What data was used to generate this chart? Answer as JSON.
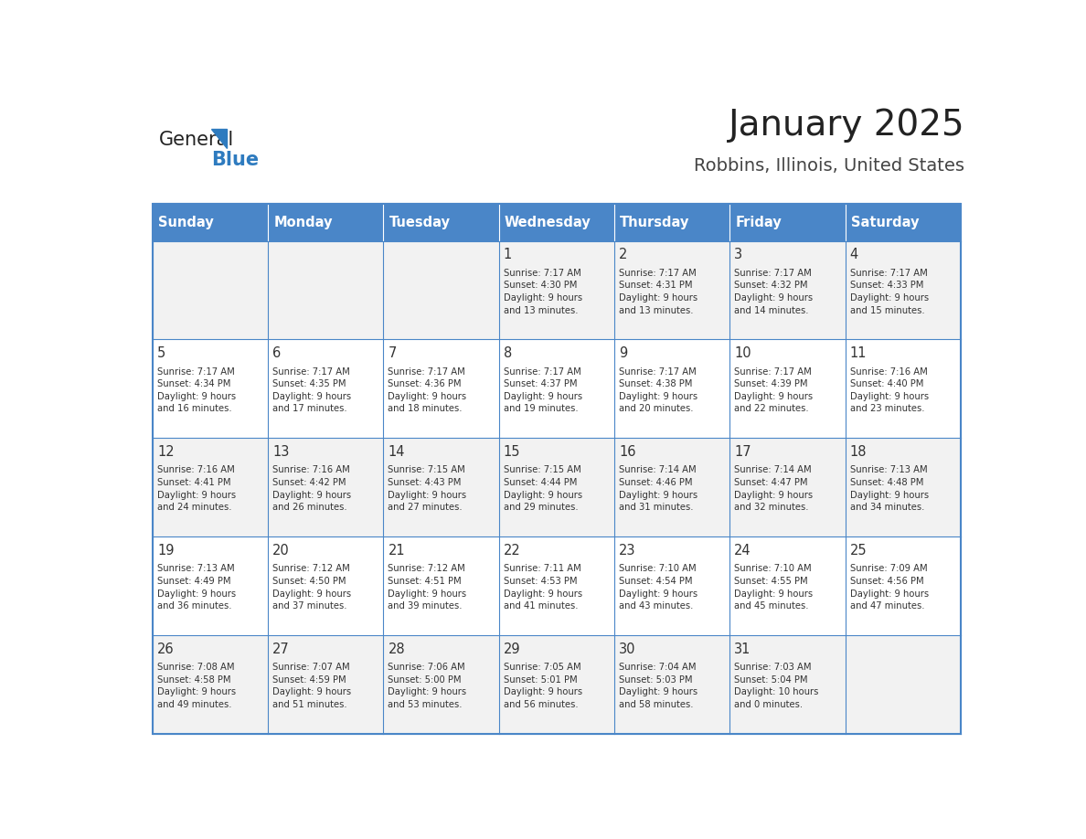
{
  "title": "January 2025",
  "subtitle": "Robbins, Illinois, United States",
  "header_bg": "#4a86c8",
  "header_text_color": "#ffffff",
  "cell_bg_light": "#f2f2f2",
  "cell_bg_white": "#ffffff",
  "day_headers": [
    "Sunday",
    "Monday",
    "Tuesday",
    "Wednesday",
    "Thursday",
    "Friday",
    "Saturday"
  ],
  "title_color": "#222222",
  "subtitle_color": "#444444",
  "cell_text_color": "#333333",
  "day_num_color": "#333333",
  "border_color": "#4a86c8",
  "logo_general_color": "#222222",
  "logo_blue_color": "#2e7bbf",
  "weeks": [
    [
      {
        "day": null,
        "data": null
      },
      {
        "day": null,
        "data": null
      },
      {
        "day": null,
        "data": null
      },
      {
        "day": 1,
        "data": "Sunrise: 7:17 AM\nSunset: 4:30 PM\nDaylight: 9 hours\nand 13 minutes."
      },
      {
        "day": 2,
        "data": "Sunrise: 7:17 AM\nSunset: 4:31 PM\nDaylight: 9 hours\nand 13 minutes."
      },
      {
        "day": 3,
        "data": "Sunrise: 7:17 AM\nSunset: 4:32 PM\nDaylight: 9 hours\nand 14 minutes."
      },
      {
        "day": 4,
        "data": "Sunrise: 7:17 AM\nSunset: 4:33 PM\nDaylight: 9 hours\nand 15 minutes."
      }
    ],
    [
      {
        "day": 5,
        "data": "Sunrise: 7:17 AM\nSunset: 4:34 PM\nDaylight: 9 hours\nand 16 minutes."
      },
      {
        "day": 6,
        "data": "Sunrise: 7:17 AM\nSunset: 4:35 PM\nDaylight: 9 hours\nand 17 minutes."
      },
      {
        "day": 7,
        "data": "Sunrise: 7:17 AM\nSunset: 4:36 PM\nDaylight: 9 hours\nand 18 minutes."
      },
      {
        "day": 8,
        "data": "Sunrise: 7:17 AM\nSunset: 4:37 PM\nDaylight: 9 hours\nand 19 minutes."
      },
      {
        "day": 9,
        "data": "Sunrise: 7:17 AM\nSunset: 4:38 PM\nDaylight: 9 hours\nand 20 minutes."
      },
      {
        "day": 10,
        "data": "Sunrise: 7:17 AM\nSunset: 4:39 PM\nDaylight: 9 hours\nand 22 minutes."
      },
      {
        "day": 11,
        "data": "Sunrise: 7:16 AM\nSunset: 4:40 PM\nDaylight: 9 hours\nand 23 minutes."
      }
    ],
    [
      {
        "day": 12,
        "data": "Sunrise: 7:16 AM\nSunset: 4:41 PM\nDaylight: 9 hours\nand 24 minutes."
      },
      {
        "day": 13,
        "data": "Sunrise: 7:16 AM\nSunset: 4:42 PM\nDaylight: 9 hours\nand 26 minutes."
      },
      {
        "day": 14,
        "data": "Sunrise: 7:15 AM\nSunset: 4:43 PM\nDaylight: 9 hours\nand 27 minutes."
      },
      {
        "day": 15,
        "data": "Sunrise: 7:15 AM\nSunset: 4:44 PM\nDaylight: 9 hours\nand 29 minutes."
      },
      {
        "day": 16,
        "data": "Sunrise: 7:14 AM\nSunset: 4:46 PM\nDaylight: 9 hours\nand 31 minutes."
      },
      {
        "day": 17,
        "data": "Sunrise: 7:14 AM\nSunset: 4:47 PM\nDaylight: 9 hours\nand 32 minutes."
      },
      {
        "day": 18,
        "data": "Sunrise: 7:13 AM\nSunset: 4:48 PM\nDaylight: 9 hours\nand 34 minutes."
      }
    ],
    [
      {
        "day": 19,
        "data": "Sunrise: 7:13 AM\nSunset: 4:49 PM\nDaylight: 9 hours\nand 36 minutes."
      },
      {
        "day": 20,
        "data": "Sunrise: 7:12 AM\nSunset: 4:50 PM\nDaylight: 9 hours\nand 37 minutes."
      },
      {
        "day": 21,
        "data": "Sunrise: 7:12 AM\nSunset: 4:51 PM\nDaylight: 9 hours\nand 39 minutes."
      },
      {
        "day": 22,
        "data": "Sunrise: 7:11 AM\nSunset: 4:53 PM\nDaylight: 9 hours\nand 41 minutes."
      },
      {
        "day": 23,
        "data": "Sunrise: 7:10 AM\nSunset: 4:54 PM\nDaylight: 9 hours\nand 43 minutes."
      },
      {
        "day": 24,
        "data": "Sunrise: 7:10 AM\nSunset: 4:55 PM\nDaylight: 9 hours\nand 45 minutes."
      },
      {
        "day": 25,
        "data": "Sunrise: 7:09 AM\nSunset: 4:56 PM\nDaylight: 9 hours\nand 47 minutes."
      }
    ],
    [
      {
        "day": 26,
        "data": "Sunrise: 7:08 AM\nSunset: 4:58 PM\nDaylight: 9 hours\nand 49 minutes."
      },
      {
        "day": 27,
        "data": "Sunrise: 7:07 AM\nSunset: 4:59 PM\nDaylight: 9 hours\nand 51 minutes."
      },
      {
        "day": 28,
        "data": "Sunrise: 7:06 AM\nSunset: 5:00 PM\nDaylight: 9 hours\nand 53 minutes."
      },
      {
        "day": 29,
        "data": "Sunrise: 7:05 AM\nSunset: 5:01 PM\nDaylight: 9 hours\nand 56 minutes."
      },
      {
        "day": 30,
        "data": "Sunrise: 7:04 AM\nSunset: 5:03 PM\nDaylight: 9 hours\nand 58 minutes."
      },
      {
        "day": 31,
        "data": "Sunrise: 7:03 AM\nSunset: 5:04 PM\nDaylight: 10 hours\nand 0 minutes."
      },
      {
        "day": null,
        "data": null
      }
    ]
  ]
}
